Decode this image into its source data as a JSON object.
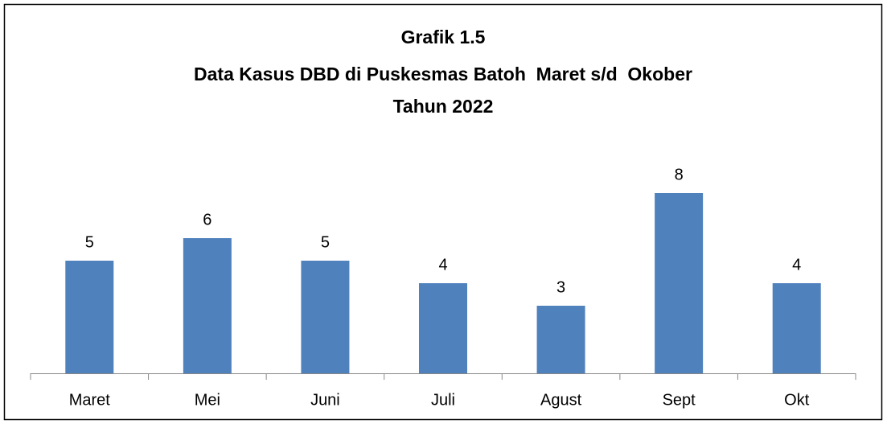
{
  "chart_data": {
    "type": "bar",
    "title": [
      "Grafik 1.5",
      "Data Kasus DBD di Puskesmas Batoh  Maret s/d  Okober",
      "Tahun 2022"
    ],
    "categories": [
      "Maret",
      "Mei",
      "Juni",
      "Juli",
      "Agust",
      "Sept",
      "Okt"
    ],
    "values": [
      5,
      6,
      5,
      4,
      3,
      8,
      4
    ],
    "color": "#4f81bd"
  }
}
